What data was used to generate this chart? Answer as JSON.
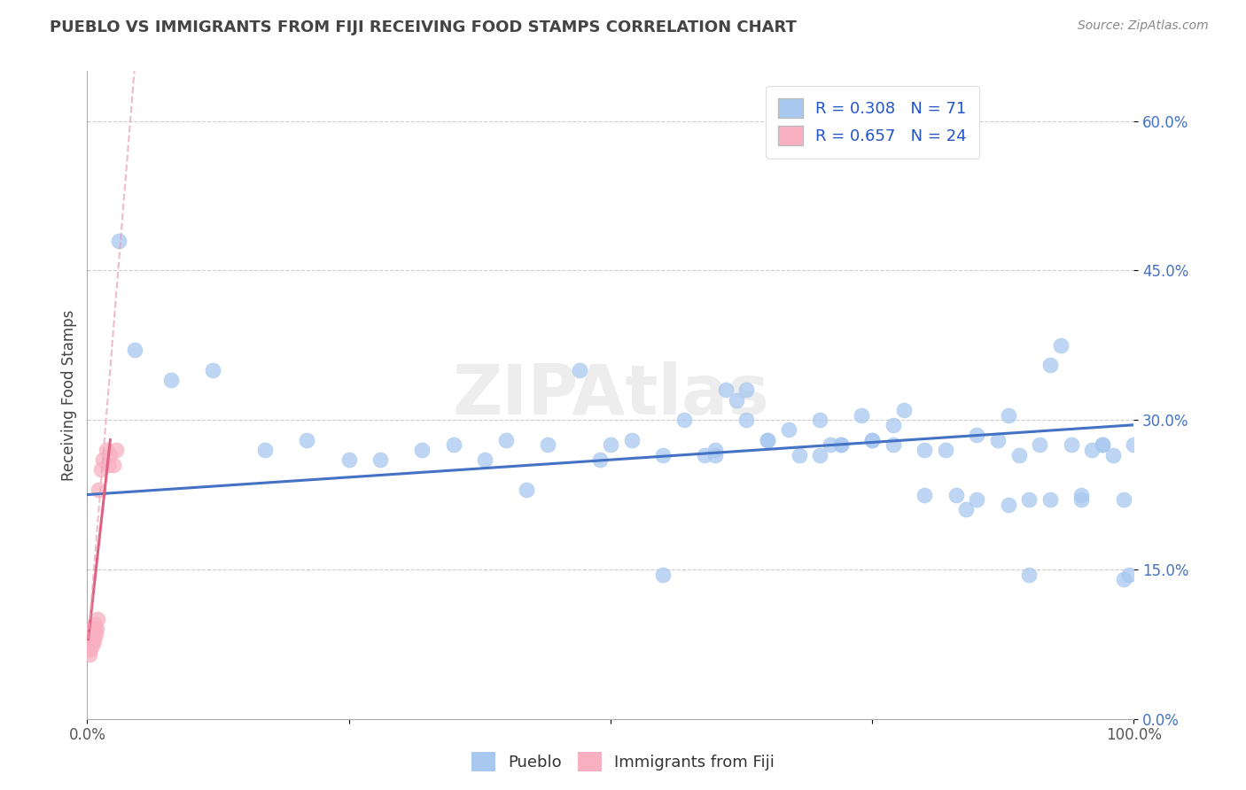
{
  "title": "PUEBLO VS IMMIGRANTS FROM FIJI RECEIVING FOOD STAMPS CORRELATION CHART",
  "source": "Source: ZipAtlas.com",
  "ylabel": "Receiving Food Stamps",
  "xlim": [
    0,
    100
  ],
  "ylim": [
    0,
    65
  ],
  "yticks": [
    0,
    15,
    30,
    45,
    60
  ],
  "ytick_labels": [
    "0.0%",
    "15.0%",
    "30.0%",
    "45.0%",
    "60.0%"
  ],
  "legend_r1": "R = 0.308",
  "legend_n1": "N = 71",
  "legend_r2": "R = 0.657",
  "legend_n2": "N = 24",
  "color_pueblo": "#a8c8f0",
  "color_fiji": "#f8b0c0",
  "color_pueblo_line": "#4472c4",
  "color_fiji_line": "#e06080",
  "color_fiji_dash": "#e8a0b0",
  "watermark": "ZIPAtlas",
  "pueblo_x": [
    3.0,
    4.5,
    8.0,
    12.0,
    17.0,
    21.0,
    25.0,
    28.0,
    32.0,
    35.0,
    38.0,
    40.0,
    42.0,
    44.0,
    47.0,
    49.0,
    52.0,
    55.0,
    57.0,
    59.0,
    61.0,
    63.0,
    65.0,
    67.0,
    68.0,
    70.0,
    71.0,
    72.0,
    74.0,
    75.0,
    77.0,
    78.0,
    80.0,
    82.0,
    84.0,
    85.0,
    87.0,
    88.0,
    89.0,
    90.0,
    91.0,
    92.0,
    93.0,
    94.0,
    95.0,
    96.0,
    97.0,
    98.0,
    99.0,
    99.5,
    60.0,
    63.0,
    65.0,
    70.0,
    72.0,
    75.0,
    77.0,
    80.0,
    83.0,
    85.0,
    88.0,
    90.0,
    92.0,
    95.0,
    97.0,
    99.0,
    100.0,
    50.0,
    55.0,
    60.0,
    62.0
  ],
  "pueblo_y": [
    48.0,
    37.0,
    34.0,
    35.0,
    27.0,
    28.0,
    26.0,
    26.0,
    27.0,
    27.5,
    26.0,
    28.0,
    23.0,
    27.5,
    35.0,
    26.0,
    28.0,
    26.5,
    30.0,
    26.5,
    33.0,
    30.0,
    28.0,
    29.0,
    26.5,
    30.0,
    27.5,
    27.5,
    30.5,
    28.0,
    29.5,
    31.0,
    27.0,
    27.0,
    21.0,
    28.5,
    28.0,
    30.5,
    26.5,
    22.0,
    27.5,
    35.5,
    37.5,
    27.5,
    22.5,
    27.0,
    27.5,
    26.5,
    22.0,
    14.5,
    26.5,
    33.0,
    28.0,
    26.5,
    27.5,
    28.0,
    27.5,
    22.5,
    22.5,
    22.0,
    21.5,
    14.5,
    22.0,
    22.0,
    27.5,
    14.0,
    27.5,
    27.5,
    14.5,
    27.0,
    32.0
  ],
  "fiji_x": [
    0.1,
    0.15,
    0.2,
    0.25,
    0.3,
    0.35,
    0.4,
    0.45,
    0.5,
    0.55,
    0.6,
    0.65,
    0.7,
    0.8,
    0.9,
    1.0,
    1.1,
    1.3,
    1.5,
    1.8,
    2.0,
    2.2,
    2.5,
    2.8
  ],
  "fiji_y": [
    8.0,
    7.0,
    8.5,
    6.5,
    7.0,
    8.0,
    7.5,
    9.0,
    8.0,
    7.5,
    8.0,
    9.0,
    9.5,
    8.5,
    9.0,
    10.0,
    23.0,
    25.0,
    26.0,
    27.0,
    25.5,
    26.5,
    25.5,
    27.0
  ],
  "pueblo_trend_x0": 0,
  "pueblo_trend_y0": 22.5,
  "pueblo_trend_x1": 100,
  "pueblo_trend_y1": 29.5,
  "fiji_trend_solid_x0": 0.1,
  "fiji_trend_solid_y0": 8.0,
  "fiji_trend_solid_x1": 2.2,
  "fiji_trend_solid_y1": 28.0,
  "fiji_trend_dash_x0": 0.1,
  "fiji_trend_dash_y0": 8.0,
  "fiji_trend_dash_x1": 4.5,
  "fiji_trend_dash_y1": 65.0
}
